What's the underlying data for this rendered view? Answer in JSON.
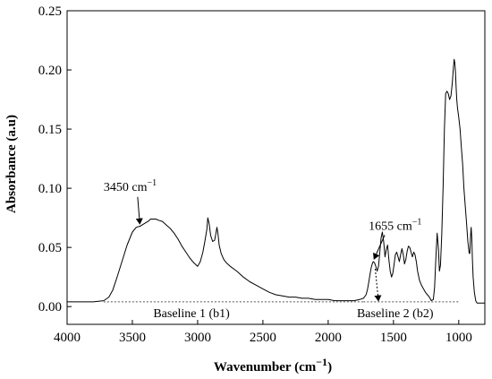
{
  "chart_data": {
    "type": "line",
    "xlabel": "Wavenumber (cm",
    "xlabel_sup": "−1",
    "xlabel_tail": ")",
    "ylabel": "Absorbance (a.u)",
    "xlim": [
      4000,
      800
    ],
    "x_reversed": true,
    "ylim": [
      -0.015,
      0.25
    ],
    "x_ticks": [
      4000,
      3500,
      3000,
      2500,
      2000,
      1500,
      1000
    ],
    "x_tick_labels": [
      "4000",
      "3500",
      "3000",
      "2500",
      "2000",
      "1500",
      "1000"
    ],
    "y_ticks": [
      0.0,
      0.05,
      0.1,
      0.15,
      0.2,
      0.25
    ],
    "y_tick_labels": [
      "0.00",
      "0.05",
      "0.10",
      "0.15",
      "0.20",
      "0.25"
    ],
    "grid": false,
    "colors": {
      "series": "#000000",
      "baseline": "#555555"
    },
    "series": [
      {
        "x": [
          4000,
          3800,
          3720,
          3680,
          3650,
          3620,
          3580,
          3540,
          3500,
          3470,
          3440,
          3410,
          3380,
          3360,
          3340,
          3320,
          3300,
          3270,
          3240,
          3210,
          3180,
          3150,
          3120,
          3090,
          3060,
          3030,
          3000,
          2980,
          2960,
          2945,
          2930,
          2922,
          2912,
          2900,
          2885,
          2870,
          2860,
          2852,
          2845,
          2835,
          2820,
          2800,
          2780,
          2750,
          2700,
          2650,
          2600,
          2550,
          2500,
          2450,
          2400,
          2350,
          2300,
          2250,
          2200,
          2150,
          2100,
          2050,
          2000,
          1950,
          1900,
          1850,
          1800,
          1760,
          1730,
          1710,
          1700,
          1690,
          1680,
          1670,
          1660,
          1655,
          1645,
          1635,
          1625,
          1615,
          1605,
          1595,
          1585,
          1575,
          1565,
          1555,
          1545,
          1535,
          1525,
          1515,
          1505,
          1495,
          1485,
          1475,
          1465,
          1455,
          1445,
          1435,
          1425,
          1415,
          1405,
          1395,
          1385,
          1375,
          1365,
          1355,
          1345,
          1335,
          1325,
          1315,
          1300,
          1285,
          1270,
          1255,
          1240,
          1225,
          1210,
          1195,
          1185,
          1175,
          1165,
          1155,
          1148,
          1140,
          1130,
          1120,
          1110,
          1100,
          1090,
          1080,
          1070,
          1060,
          1050,
          1040,
          1035,
          1030,
          1025,
          1020,
          1015,
          1010,
          1000,
          990,
          980,
          970,
          960,
          950,
          940,
          930,
          920,
          915,
          910,
          905,
          900,
          895,
          890,
          880,
          870,
          860,
          850,
          840,
          830,
          820,
          810,
          800
        ],
        "y": [
          0.004,
          0.004,
          0.005,
          0.008,
          0.014,
          0.024,
          0.038,
          0.052,
          0.063,
          0.067,
          0.068,
          0.07,
          0.072,
          0.074,
          0.074,
          0.074,
          0.073,
          0.072,
          0.069,
          0.066,
          0.062,
          0.057,
          0.051,
          0.046,
          0.041,
          0.037,
          0.034,
          0.038,
          0.046,
          0.055,
          0.065,
          0.075,
          0.07,
          0.06,
          0.055,
          0.056,
          0.062,
          0.067,
          0.062,
          0.052,
          0.045,
          0.04,
          0.037,
          0.034,
          0.03,
          0.025,
          0.021,
          0.018,
          0.015,
          0.012,
          0.01,
          0.009,
          0.008,
          0.008,
          0.007,
          0.007,
          0.006,
          0.006,
          0.006,
          0.005,
          0.005,
          0.005,
          0.005,
          0.006,
          0.007,
          0.01,
          0.014,
          0.02,
          0.027,
          0.033,
          0.037,
          0.038,
          0.037,
          0.034,
          0.03,
          0.034,
          0.045,
          0.058,
          0.063,
          0.055,
          0.042,
          0.048,
          0.052,
          0.04,
          0.03,
          0.025,
          0.028,
          0.036,
          0.044,
          0.046,
          0.042,
          0.038,
          0.044,
          0.049,
          0.044,
          0.036,
          0.04,
          0.047,
          0.051,
          0.05,
          0.046,
          0.042,
          0.046,
          0.044,
          0.038,
          0.03,
          0.022,
          0.018,
          0.015,
          0.012,
          0.01,
          0.008,
          0.005,
          0.006,
          0.016,
          0.042,
          0.062,
          0.048,
          0.03,
          0.035,
          0.06,
          0.1,
          0.15,
          0.18,
          0.182,
          0.18,
          0.175,
          0.178,
          0.188,
          0.203,
          0.209,
          0.206,
          0.198,
          0.185,
          0.175,
          0.168,
          0.16,
          0.15,
          0.135,
          0.12,
          0.1,
          0.085,
          0.07,
          0.055,
          0.045,
          0.045,
          0.058,
          0.067,
          0.058,
          0.04,
          0.025,
          0.012,
          0.005,
          0.003,
          0.003,
          0.003,
          0.003,
          0.003,
          0.003,
          0.003
        ]
      }
    ],
    "baselines": [
      {
        "label": "Baseline 1 (b1)",
        "x": [
          3720,
          1730
        ],
        "y": [
          0.004,
          0.004
        ]
      },
      {
        "label": "Baseline 2 (b2)",
        "x": [
          1730,
          1000
        ],
        "y": [
          0.004,
          0.004
        ]
      }
    ],
    "annotations": [
      {
        "text": "3450 cm",
        "sup": "−1",
        "anchor_x": 3450,
        "anchor_y": 0.067,
        "label_x": 3720,
        "label_y": 0.098
      },
      {
        "text": "1655 cm",
        "sup": "−1",
        "anchor_x": 1655,
        "anchor_y": 0.038,
        "label_x": 1690,
        "label_y": 0.065
      },
      {
        "text": "Baseline 1 (b1)",
        "label_x": 3340,
        "label_y": -0.009
      },
      {
        "text": "Baseline 2 (b2)",
        "label_x": 1780,
        "label_y": -0.009,
        "anchor_x": 1615,
        "anchor_y": 0.005
      }
    ]
  }
}
